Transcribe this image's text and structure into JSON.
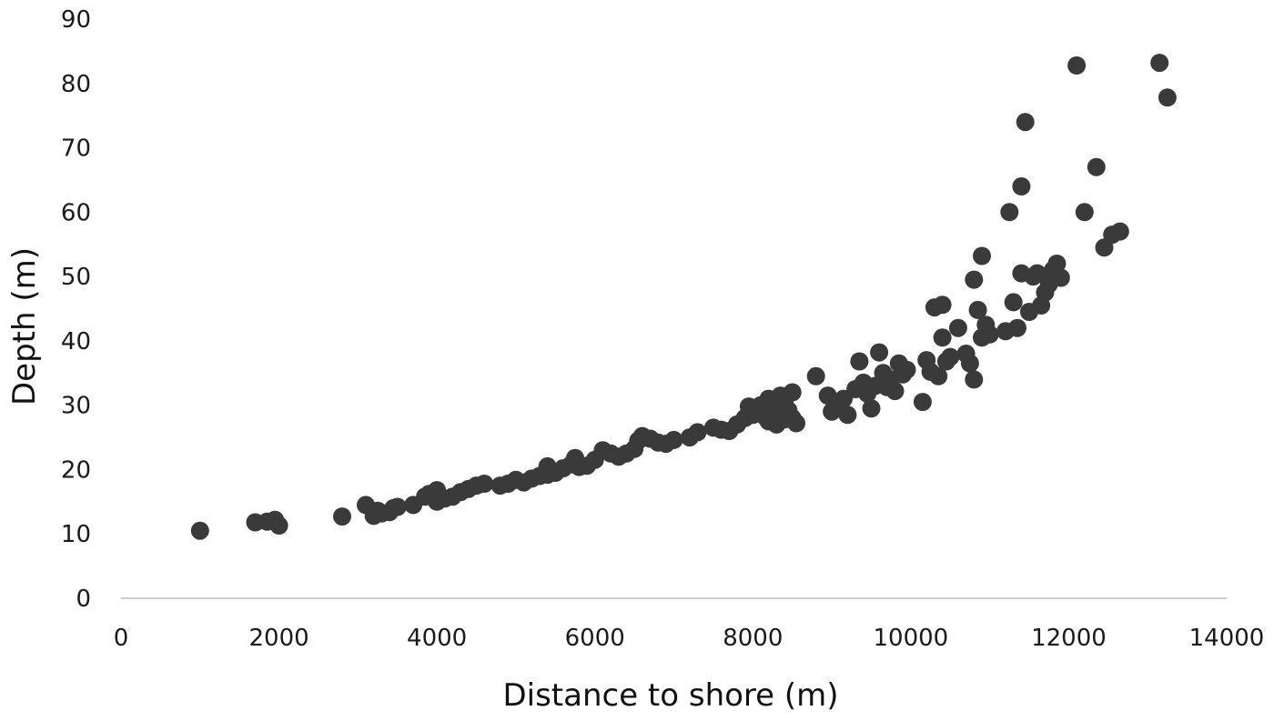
{
  "chart_data": {
    "type": "scatter",
    "title": "",
    "xlabel": "Distance to shore (m)",
    "ylabel": "Depth (m)",
    "xlim": [
      0,
      14000
    ],
    "ylim": [
      0,
      90
    ],
    "xticks": [
      0,
      2000,
      4000,
      6000,
      8000,
      10000,
      12000,
      14000
    ],
    "yticks": [
      0,
      10,
      20,
      30,
      40,
      50,
      60,
      70,
      80,
      90
    ],
    "x_tick_labels": [
      "0",
      "2000",
      "4000",
      "6000",
      "8000",
      "10000",
      "12000",
      "14000"
    ],
    "y_tick_labels": [
      "0",
      "10",
      "20",
      "30",
      "40",
      "50",
      "60",
      "70",
      "80",
      "90"
    ],
    "grid": false,
    "legend": "none",
    "marker_color": "#3a3a3a",
    "points": [
      [
        1000,
        10.5
      ],
      [
        1700,
        11.8
      ],
      [
        1850,
        11.9
      ],
      [
        1950,
        12.2
      ],
      [
        2000,
        11.3
      ],
      [
        2800,
        12.7
      ],
      [
        3100,
        14.5
      ],
      [
        3200,
        12.8
      ],
      [
        3250,
        13.6
      ],
      [
        3300,
        13.2
      ],
      [
        3400,
        13.4
      ],
      [
        3450,
        14.0
      ],
      [
        3500,
        14.2
      ],
      [
        3700,
        14.5
      ],
      [
        3850,
        15.8
      ],
      [
        3900,
        16.2
      ],
      [
        4000,
        16.8
      ],
      [
        4000,
        15.0
      ],
      [
        4100,
        15.5
      ],
      [
        4200,
        15.8
      ],
      [
        4300,
        16.5
      ],
      [
        4400,
        17.0
      ],
      [
        4500,
        17.5
      ],
      [
        4600,
        17.8
      ],
      [
        4800,
        17.5
      ],
      [
        4900,
        17.8
      ],
      [
        5000,
        18.4
      ],
      [
        5100,
        18.0
      ],
      [
        5200,
        18.6
      ],
      [
        5300,
        19.0
      ],
      [
        5400,
        20.5
      ],
      [
        5400,
        19.2
      ],
      [
        5500,
        19.5
      ],
      [
        5600,
        20.2
      ],
      [
        5700,
        20.8
      ],
      [
        5750,
        21.8
      ],
      [
        5800,
        20.4
      ],
      [
        5900,
        20.6
      ],
      [
        6000,
        21.5
      ],
      [
        6100,
        23.0
      ],
      [
        6200,
        22.5
      ],
      [
        6300,
        22.0
      ],
      [
        6400,
        22.5
      ],
      [
        6500,
        23.2
      ],
      [
        6550,
        24.5
      ],
      [
        6600,
        25.2
      ],
      [
        6700,
        24.8
      ],
      [
        6800,
        24.2
      ],
      [
        6900,
        24.0
      ],
      [
        7000,
        24.6
      ],
      [
        7200,
        25.0
      ],
      [
        7300,
        25.8
      ],
      [
        7500,
        26.5
      ],
      [
        7600,
        26.2
      ],
      [
        7700,
        26.0
      ],
      [
        7800,
        27.0
      ],
      [
        7900,
        28.0
      ],
      [
        7950,
        29.8
      ],
      [
        8000,
        28.5
      ],
      [
        8050,
        29.0
      ],
      [
        8100,
        30.0
      ],
      [
        8150,
        28.3
      ],
      [
        8200,
        31.0
      ],
      [
        8200,
        27.5
      ],
      [
        8250,
        30.2
      ],
      [
        8300,
        29.5
      ],
      [
        8300,
        27.0
      ],
      [
        8350,
        31.5
      ],
      [
        8350,
        28.8
      ],
      [
        8400,
        30.5
      ],
      [
        8400,
        27.8
      ],
      [
        8450,
        29.2
      ],
      [
        8500,
        32.0
      ],
      [
        8500,
        28.0
      ],
      [
        8550,
        27.2
      ],
      [
        8800,
        34.5
      ],
      [
        8950,
        31.5
      ],
      [
        9000,
        29.0
      ],
      [
        9050,
        30.5
      ],
      [
        9150,
        31.0
      ],
      [
        9200,
        28.5
      ],
      [
        9300,
        32.5
      ],
      [
        9350,
        36.8
      ],
      [
        9400,
        33.5
      ],
      [
        9450,
        31.8
      ],
      [
        9500,
        29.5
      ],
      [
        9550,
        33.0
      ],
      [
        9600,
        38.2
      ],
      [
        9650,
        35.0
      ],
      [
        9700,
        32.8
      ],
      [
        9750,
        34.0
      ],
      [
        9800,
        32.2
      ],
      [
        9850,
        36.5
      ],
      [
        9900,
        34.8
      ],
      [
        9950,
        35.5
      ],
      [
        10150,
        30.5
      ],
      [
        10200,
        37.0
      ],
      [
        10250,
        35.2
      ],
      [
        10300,
        45.2
      ],
      [
        10350,
        34.5
      ],
      [
        10400,
        45.6
      ],
      [
        10400,
        40.5
      ],
      [
        10450,
        36.8
      ],
      [
        10500,
        37.5
      ],
      [
        10600,
        42.0
      ],
      [
        10700,
        38.0
      ],
      [
        10750,
        36.5
      ],
      [
        10800,
        49.5
      ],
      [
        10800,
        34.0
      ],
      [
        10850,
        44.8
      ],
      [
        10900,
        53.2
      ],
      [
        10900,
        40.5
      ],
      [
        10950,
        42.5
      ],
      [
        11000,
        41.0
      ],
      [
        11200,
        41.5
      ],
      [
        11250,
        60.0
      ],
      [
        11300,
        46.0
      ],
      [
        11350,
        42.0
      ],
      [
        11400,
        64.0
      ],
      [
        11400,
        50.5
      ],
      [
        11450,
        74.0
      ],
      [
        11500,
        44.5
      ],
      [
        11550,
        50.0
      ],
      [
        11600,
        50.5
      ],
      [
        11650,
        45.5
      ],
      [
        11700,
        47.5
      ],
      [
        11750,
        48.8
      ],
      [
        11800,
        51.0
      ],
      [
        11850,
        52.0
      ],
      [
        11900,
        49.8
      ],
      [
        12100,
        82.8
      ],
      [
        12200,
        60.0
      ],
      [
        12350,
        67.0
      ],
      [
        12450,
        54.5
      ],
      [
        12550,
        56.5
      ],
      [
        12650,
        57.0
      ],
      [
        13150,
        83.2
      ],
      [
        13250,
        77.8
      ]
    ]
  }
}
